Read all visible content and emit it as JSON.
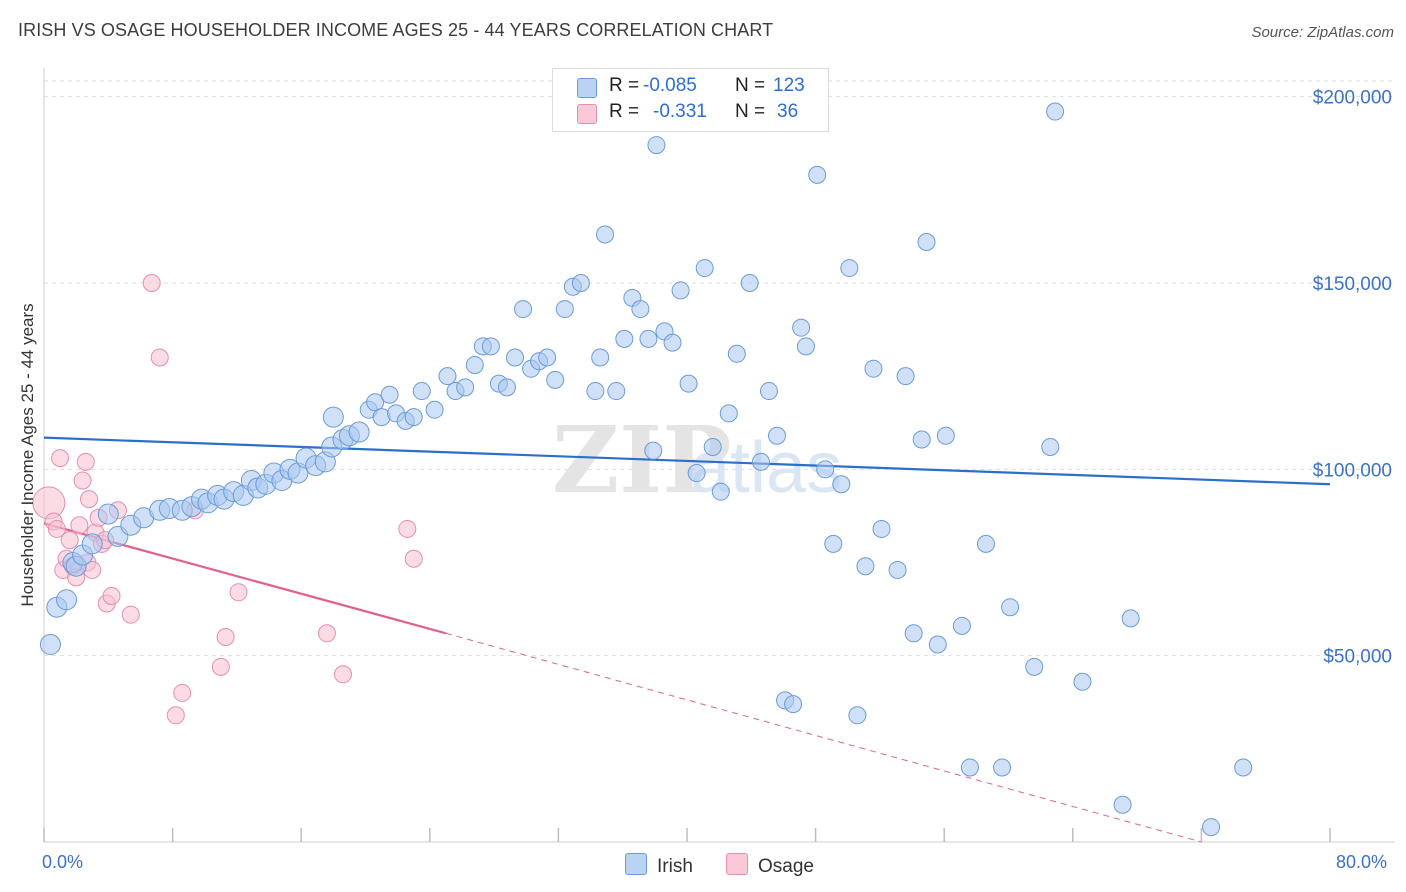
{
  "title": "IRISH VS OSAGE HOUSEHOLDER INCOME AGES 25 - 44 YEARS CORRELATION CHART",
  "source": "Source: ZipAtlas.com",
  "watermark": {
    "zip": "ZIP",
    "atlas": "atlas"
  },
  "legend": {
    "irish": {
      "r_label": "R =",
      "r_value": "-0.085",
      "n_label": "N =",
      "n_value": "123"
    },
    "osage": {
      "r_label": "R =",
      "r_value": "-0.331",
      "n_label": "N =",
      "n_value": "36"
    }
  },
  "colors": {
    "irish_fill": "#a9c8f0",
    "irish_stroke": "#6b9bd8",
    "irish_line": "#2b6fcb",
    "osage_fill": "#f7bfd0",
    "osage_stroke": "#e58fae",
    "osage_line": "#e0628f",
    "grid": "#dedede",
    "tick_text": "#3b72c4"
  },
  "chart_data": {
    "type": "scatter",
    "title": "IRISH VS OSAGE HOUSEHOLDER INCOME AGES 25 - 44 YEARS CORRELATION CHART",
    "xlabel": "",
    "ylabel": "Householder Income Ages 25 - 44 years",
    "xlim": [
      0,
      80
    ],
    "ylim": [
      0,
      205000
    ],
    "x_tick_labels": [
      "0.0%",
      "80.0%"
    ],
    "y_ticks": [
      50000,
      100000,
      150000,
      200000
    ],
    "y_tick_labels": [
      "$50,000",
      "$100,000",
      "$150,000",
      "$200,000"
    ],
    "grid": true,
    "legend_position": "top-center",
    "series": [
      {
        "name": "Irish",
        "r": -0.085,
        "n": 123,
        "trend": {
          "x": [
            0,
            80
          ],
          "y": [
            108500,
            96000
          ]
        },
        "points": [
          [
            0.4,
            53000
          ],
          [
            0.8,
            63000
          ],
          [
            1.4,
            65000
          ],
          [
            1.8,
            75000
          ],
          [
            2.0,
            74000
          ],
          [
            2.4,
            77000
          ],
          [
            3.0,
            80000
          ],
          [
            4.0,
            88000
          ],
          [
            4.6,
            82000
          ],
          [
            5.4,
            85000
          ],
          [
            6.2,
            87000
          ],
          [
            7.2,
            89000
          ],
          [
            7.8,
            89500
          ],
          [
            8.6,
            89000
          ],
          [
            9.2,
            90000
          ],
          [
            9.8,
            92000
          ],
          [
            10.2,
            91000
          ],
          [
            10.8,
            93000
          ],
          [
            11.2,
            92000
          ],
          [
            11.8,
            94000
          ],
          [
            12.4,
            93000
          ],
          [
            12.9,
            97000
          ],
          [
            13.3,
            95000
          ],
          [
            13.8,
            96000
          ],
          [
            14.3,
            99000
          ],
          [
            14.8,
            97000
          ],
          [
            15.3,
            100000
          ],
          [
            15.8,
            99000
          ],
          [
            16.3,
            103000
          ],
          [
            16.9,
            101000
          ],
          [
            17.5,
            102000
          ],
          [
            17.9,
            106000
          ],
          [
            18.0,
            114000
          ],
          [
            18.6,
            108000
          ],
          [
            19.0,
            109000
          ],
          [
            19.6,
            110000
          ],
          [
            20.2,
            116000
          ],
          [
            20.6,
            118000
          ],
          [
            21.0,
            114000
          ],
          [
            21.5,
            120000
          ],
          [
            21.9,
            115000
          ],
          [
            22.5,
            113000
          ],
          [
            23.0,
            114000
          ],
          [
            23.5,
            121000
          ],
          [
            24.3,
            116000
          ],
          [
            25.1,
            125000
          ],
          [
            25.6,
            121000
          ],
          [
            26.2,
            122000
          ],
          [
            26.8,
            128000
          ],
          [
            27.3,
            133000
          ],
          [
            27.8,
            133000
          ],
          [
            28.3,
            123000
          ],
          [
            28.8,
            122000
          ],
          [
            29.3,
            130000
          ],
          [
            29.8,
            143000
          ],
          [
            30.3,
            127000
          ],
          [
            30.8,
            129000
          ],
          [
            31.3,
            130000
          ],
          [
            31.8,
            124000
          ],
          [
            32.4,
            143000
          ],
          [
            32.9,
            149000
          ],
          [
            33.4,
            150000
          ],
          [
            34.3,
            121000
          ],
          [
            34.6,
            130000
          ],
          [
            34.9,
            163000
          ],
          [
            35.6,
            121000
          ],
          [
            36.1,
            135000
          ],
          [
            36.6,
            146000
          ],
          [
            37.1,
            143000
          ],
          [
            37.6,
            135000
          ],
          [
            37.9,
            105000
          ],
          [
            38.1,
            187000
          ],
          [
            38.6,
            137000
          ],
          [
            39.1,
            134000
          ],
          [
            39.6,
            148000
          ],
          [
            40.1,
            123000
          ],
          [
            40.6,
            99000
          ],
          [
            41.1,
            154000
          ],
          [
            41.6,
            106000
          ],
          [
            42.1,
            94000
          ],
          [
            42.6,
            115000
          ],
          [
            43.1,
            131000
          ],
          [
            43.6,
            193000
          ],
          [
            43.9,
            150000
          ],
          [
            44.6,
            102000
          ],
          [
            45.1,
            121000
          ],
          [
            45.6,
            109000
          ],
          [
            46.1,
            38000
          ],
          [
            46.6,
            37000
          ],
          [
            47.1,
            138000
          ],
          [
            47.4,
            133000
          ],
          [
            48.1,
            179000
          ],
          [
            48.6,
            100000
          ],
          [
            49.1,
            80000
          ],
          [
            49.6,
            96000
          ],
          [
            50.1,
            154000
          ],
          [
            50.6,
            34000
          ],
          [
            51.1,
            74000
          ],
          [
            51.6,
            127000
          ],
          [
            52.1,
            84000
          ],
          [
            53.1,
            73000
          ],
          [
            53.6,
            125000
          ],
          [
            54.1,
            56000
          ],
          [
            54.6,
            108000
          ],
          [
            54.9,
            161000
          ],
          [
            55.6,
            53000
          ],
          [
            56.1,
            109000
          ],
          [
            57.1,
            58000
          ],
          [
            57.6,
            20000
          ],
          [
            58.6,
            80000
          ],
          [
            59.6,
            20000
          ],
          [
            60.1,
            63000
          ],
          [
            61.6,
            47000
          ],
          [
            62.6,
            106000
          ],
          [
            62.9,
            196000
          ],
          [
            64.6,
            43000
          ],
          [
            67.1,
            10000
          ],
          [
            67.6,
            60000
          ],
          [
            72.6,
            4000
          ],
          [
            74.6,
            20000
          ]
        ]
      },
      {
        "name": "Osage",
        "r": -0.331,
        "n": 36,
        "trend": {
          "x": [
            0,
            25
          ],
          "y": [
            85500,
            56000
          ],
          "dashed_to": [
            72,
            0
          ]
        },
        "points": [
          [
            0.3,
            91000
          ],
          [
            0.6,
            86000
          ],
          [
            0.8,
            84000
          ],
          [
            1.0,
            103000
          ],
          [
            1.2,
            73000
          ],
          [
            1.4,
            76000
          ],
          [
            1.6,
            81000
          ],
          [
            1.8,
            74000
          ],
          [
            2.0,
            71000
          ],
          [
            2.2,
            85000
          ],
          [
            2.4,
            97000
          ],
          [
            2.6,
            102000
          ],
          [
            2.7,
            75000
          ],
          [
            2.8,
            92000
          ],
          [
            3.0,
            73000
          ],
          [
            3.2,
            83000
          ],
          [
            3.4,
            87000
          ],
          [
            3.6,
            80000
          ],
          [
            3.8,
            81000
          ],
          [
            3.9,
            64000
          ],
          [
            4.2,
            66000
          ],
          [
            4.6,
            89000
          ],
          [
            5.4,
            61000
          ],
          [
            6.7,
            150000
          ],
          [
            7.2,
            130000
          ],
          [
            8.2,
            34000
          ],
          [
            8.6,
            40000
          ],
          [
            9.4,
            89000
          ],
          [
            11.0,
            47000
          ],
          [
            11.3,
            55000
          ],
          [
            12.1,
            67000
          ],
          [
            17.6,
            56000
          ],
          [
            18.6,
            45000
          ],
          [
            22.6,
            84000
          ],
          [
            23.0,
            76000
          ]
        ]
      }
    ]
  },
  "bottom_legend": {
    "irish": "Irish",
    "osage": "Osage"
  }
}
